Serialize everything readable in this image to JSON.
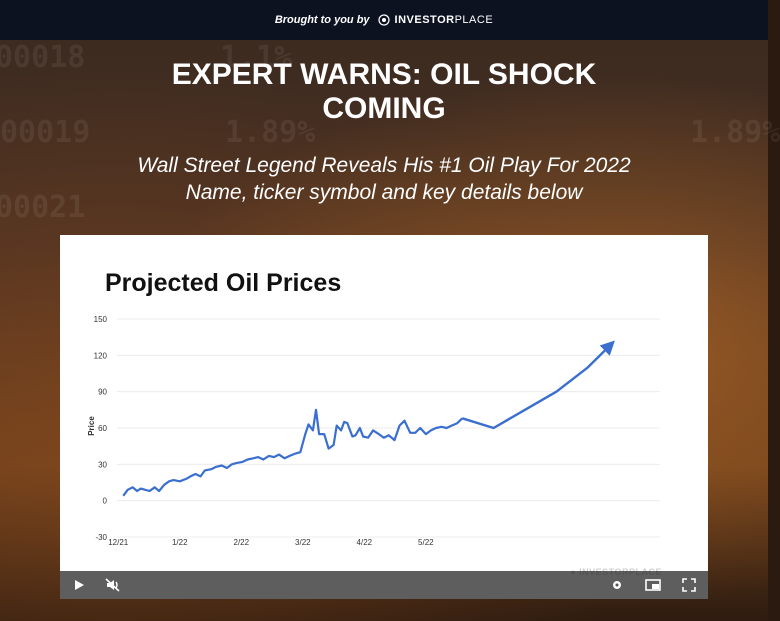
{
  "banner": {
    "prefix": "Brought to you by",
    "brand_bold": "INVESTOR",
    "brand_light": "PLACE"
  },
  "background_numbers": [
    "00018",
    "1.1%",
    "00019",
    "1.89%",
    "00021",
    "1.89%"
  ],
  "headline": {
    "line1": "EXPERT WARNS: OIL SHOCK",
    "line2": "COMING"
  },
  "subhead": {
    "line1": "Wall Street Legend Reveals His #1 Oil Play For 2022",
    "line2": "Name, ticker symbol and key details below"
  },
  "video": {
    "watermark": "INVESTORPLACE",
    "controls": [
      "play-icon",
      "mute-icon",
      "settings-icon",
      "pip-icon",
      "fullscreen-icon"
    ]
  },
  "chart_data": {
    "type": "line",
    "title": "Projected Oil Prices",
    "ylabel": "Price",
    "xlabel": "",
    "ylim": [
      -30,
      150
    ],
    "yticks": [
      150,
      120,
      90,
      60,
      30,
      0,
      -30
    ],
    "xticks": [
      {
        "label": "12/21",
        "x": 0
      },
      {
        "label": "1/22",
        "x": 1
      },
      {
        "label": "2/22",
        "x": 2
      },
      {
        "label": "3/22",
        "x": 3
      },
      {
        "label": "4/22",
        "x": 4
      },
      {
        "label": "5/22",
        "x": 5
      }
    ],
    "grid": true,
    "line_color": "#3a6fd0",
    "series": [
      {
        "name": "",
        "x": [
          0.1,
          0.17,
          0.25,
          0.32,
          0.38,
          0.45,
          0.52,
          0.6,
          0.67,
          0.75,
          0.83,
          0.9,
          1.0,
          1.1,
          1.17,
          1.25,
          1.33,
          1.4,
          1.5,
          1.58,
          1.67,
          1.75,
          1.83,
          1.9,
          2.0,
          2.08,
          2.17,
          2.25,
          2.33,
          2.42,
          2.5,
          2.58,
          2.67,
          2.75,
          2.85,
          2.92,
          3.0,
          3.05,
          3.12,
          3.17,
          3.22,
          3.3,
          3.37,
          3.45,
          3.5,
          3.57,
          3.62,
          3.67,
          3.75,
          3.8,
          3.87,
          3.92,
          4.0,
          4.08,
          4.17,
          4.25,
          4.33,
          4.42,
          4.5,
          4.58,
          4.67,
          4.75,
          4.83,
          4.92,
          5.0,
          5.08,
          5.17,
          5.25,
          5.33,
          5.42,
          5.5
        ],
        "values": [
          4,
          9,
          11,
          8,
          10,
          9,
          8,
          11,
          8,
          13,
          16,
          17,
          16,
          18,
          20,
          22,
          20,
          25,
          26,
          28,
          29,
          27,
          30,
          31,
          32,
          34,
          35,
          36,
          34,
          37,
          36,
          38,
          35,
          37,
          39,
          40,
          55,
          63,
          58,
          75,
          55,
          55,
          43,
          46,
          62,
          58,
          65,
          64,
          53,
          54,
          60,
          53,
          52,
          58,
          55,
          52,
          54,
          50,
          62,
          66,
          56,
          56,
          60,
          55,
          58,
          60,
          61,
          60,
          62,
          64,
          68
        ]
      },
      {
        "name": "",
        "x": [
          5.5,
          6.0,
          6.5,
          7.0,
          7.5,
          7.85
        ],
        "values": [
          68,
          60,
          75,
          90,
          110,
          128
        ]
      }
    ]
  }
}
